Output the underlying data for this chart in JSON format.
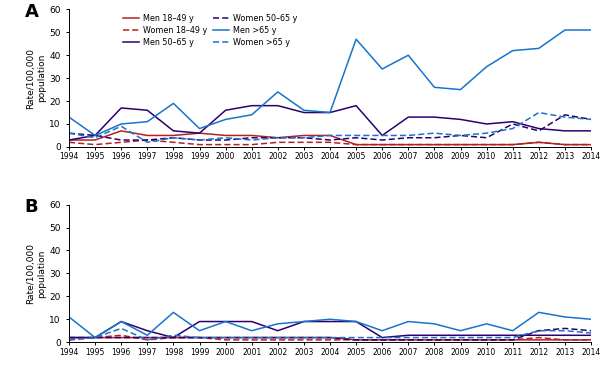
{
  "years": [
    1994,
    1995,
    1996,
    1997,
    1998,
    1999,
    2000,
    2001,
    2002,
    2003,
    2004,
    2005,
    2006,
    2007,
    2008,
    2009,
    2010,
    2011,
    2012,
    2013,
    2014
  ],
  "A": {
    "men_18_49": [
      3,
      3,
      7,
      5,
      5,
      6,
      5,
      5,
      4,
      5,
      5,
      1,
      1,
      1,
      1,
      1,
      1,
      1,
      2,
      1,
      1
    ],
    "men_50_65": [
      3,
      5,
      17,
      16,
      7,
      6,
      16,
      18,
      18,
      15,
      15,
      18,
      5,
      13,
      13,
      12,
      10,
      11,
      8,
      7,
      7
    ],
    "men_gt65": [
      13,
      5,
      10,
      11,
      19,
      8,
      12,
      14,
      24,
      16,
      15,
      47,
      34,
      40,
      26,
      25,
      35,
      42,
      43,
      51,
      51
    ],
    "women_18_49": [
      2,
      1,
      2,
      3,
      2,
      1,
      1,
      1,
      2,
      2,
      2,
      1,
      1,
      1,
      1,
      1,
      1,
      1,
      2,
      1,
      1
    ],
    "women_50_65": [
      6,
      5,
      3,
      3,
      4,
      3,
      3,
      4,
      4,
      4,
      3,
      4,
      3,
      4,
      4,
      5,
      4,
      10,
      7,
      14,
      12
    ],
    "women_gt65": [
      6,
      4,
      9,
      2,
      4,
      3,
      4,
      3,
      4,
      4,
      5,
      5,
      5,
      5,
      6,
      5,
      6,
      8,
      15,
      13,
      12
    ]
  },
  "B": {
    "men_18_49": [
      2,
      2,
      2,
      2,
      2,
      2,
      2,
      2,
      2,
      2,
      2,
      1,
      1,
      1,
      1,
      1,
      1,
      1,
      1,
      1,
      1
    ],
    "men_50_65": [
      2,
      2,
      9,
      5,
      2,
      9,
      9,
      9,
      5,
      9,
      9,
      9,
      2,
      3,
      3,
      3,
      3,
      3,
      3,
      3,
      3
    ],
    "men_gt65": [
      11,
      2,
      9,
      3,
      13,
      5,
      9,
      5,
      8,
      9,
      10,
      9,
      5,
      9,
      8,
      5,
      8,
      5,
      13,
      11,
      10
    ],
    "women_18_49": [
      1,
      2,
      3,
      1,
      2,
      2,
      1,
      1,
      1,
      1,
      1,
      1,
      1,
      1,
      1,
      1,
      1,
      1,
      2,
      1,
      1
    ],
    "women_50_65": [
      2,
      2,
      2,
      2,
      2,
      2,
      2,
      2,
      2,
      2,
      2,
      1,
      1,
      1,
      1,
      1,
      1,
      1,
      5,
      6,
      5
    ],
    "women_gt65": [
      1,
      2,
      6,
      1,
      3,
      2,
      2,
      2,
      2,
      2,
      2,
      2,
      2,
      2,
      2,
      2,
      2,
      2,
      5,
      5,
      4
    ]
  },
  "colors": {
    "18_49": "#b22222",
    "50_65": "#2b0070",
    "gt65": "#1874cd"
  },
  "ylim": [
    0,
    60
  ],
  "yticks": [
    0,
    10,
    20,
    30,
    40,
    50,
    60
  ],
  "ylabel": "Rate/100,000\npopulation",
  "background": "#ffffff",
  "legend_A": [
    {
      "label": "Men 18–49 y",
      "color": "#b22222",
      "ls": "solid"
    },
    {
      "label": "Men 50–65 y",
      "color": "#2b0070",
      "ls": "solid"
    },
    {
      "label": "Men >65 y",
      "color": "#1874cd",
      "ls": "solid"
    },
    {
      "label": "Women 18–49 y",
      "color": "#b22222",
      "ls": "dashed"
    },
    {
      "label": "Women 50–65 y",
      "color": "#2b0070",
      "ls": "dashed"
    },
    {
      "label": "Women >65 y",
      "color": "#1874cd",
      "ls": "dashed"
    }
  ]
}
